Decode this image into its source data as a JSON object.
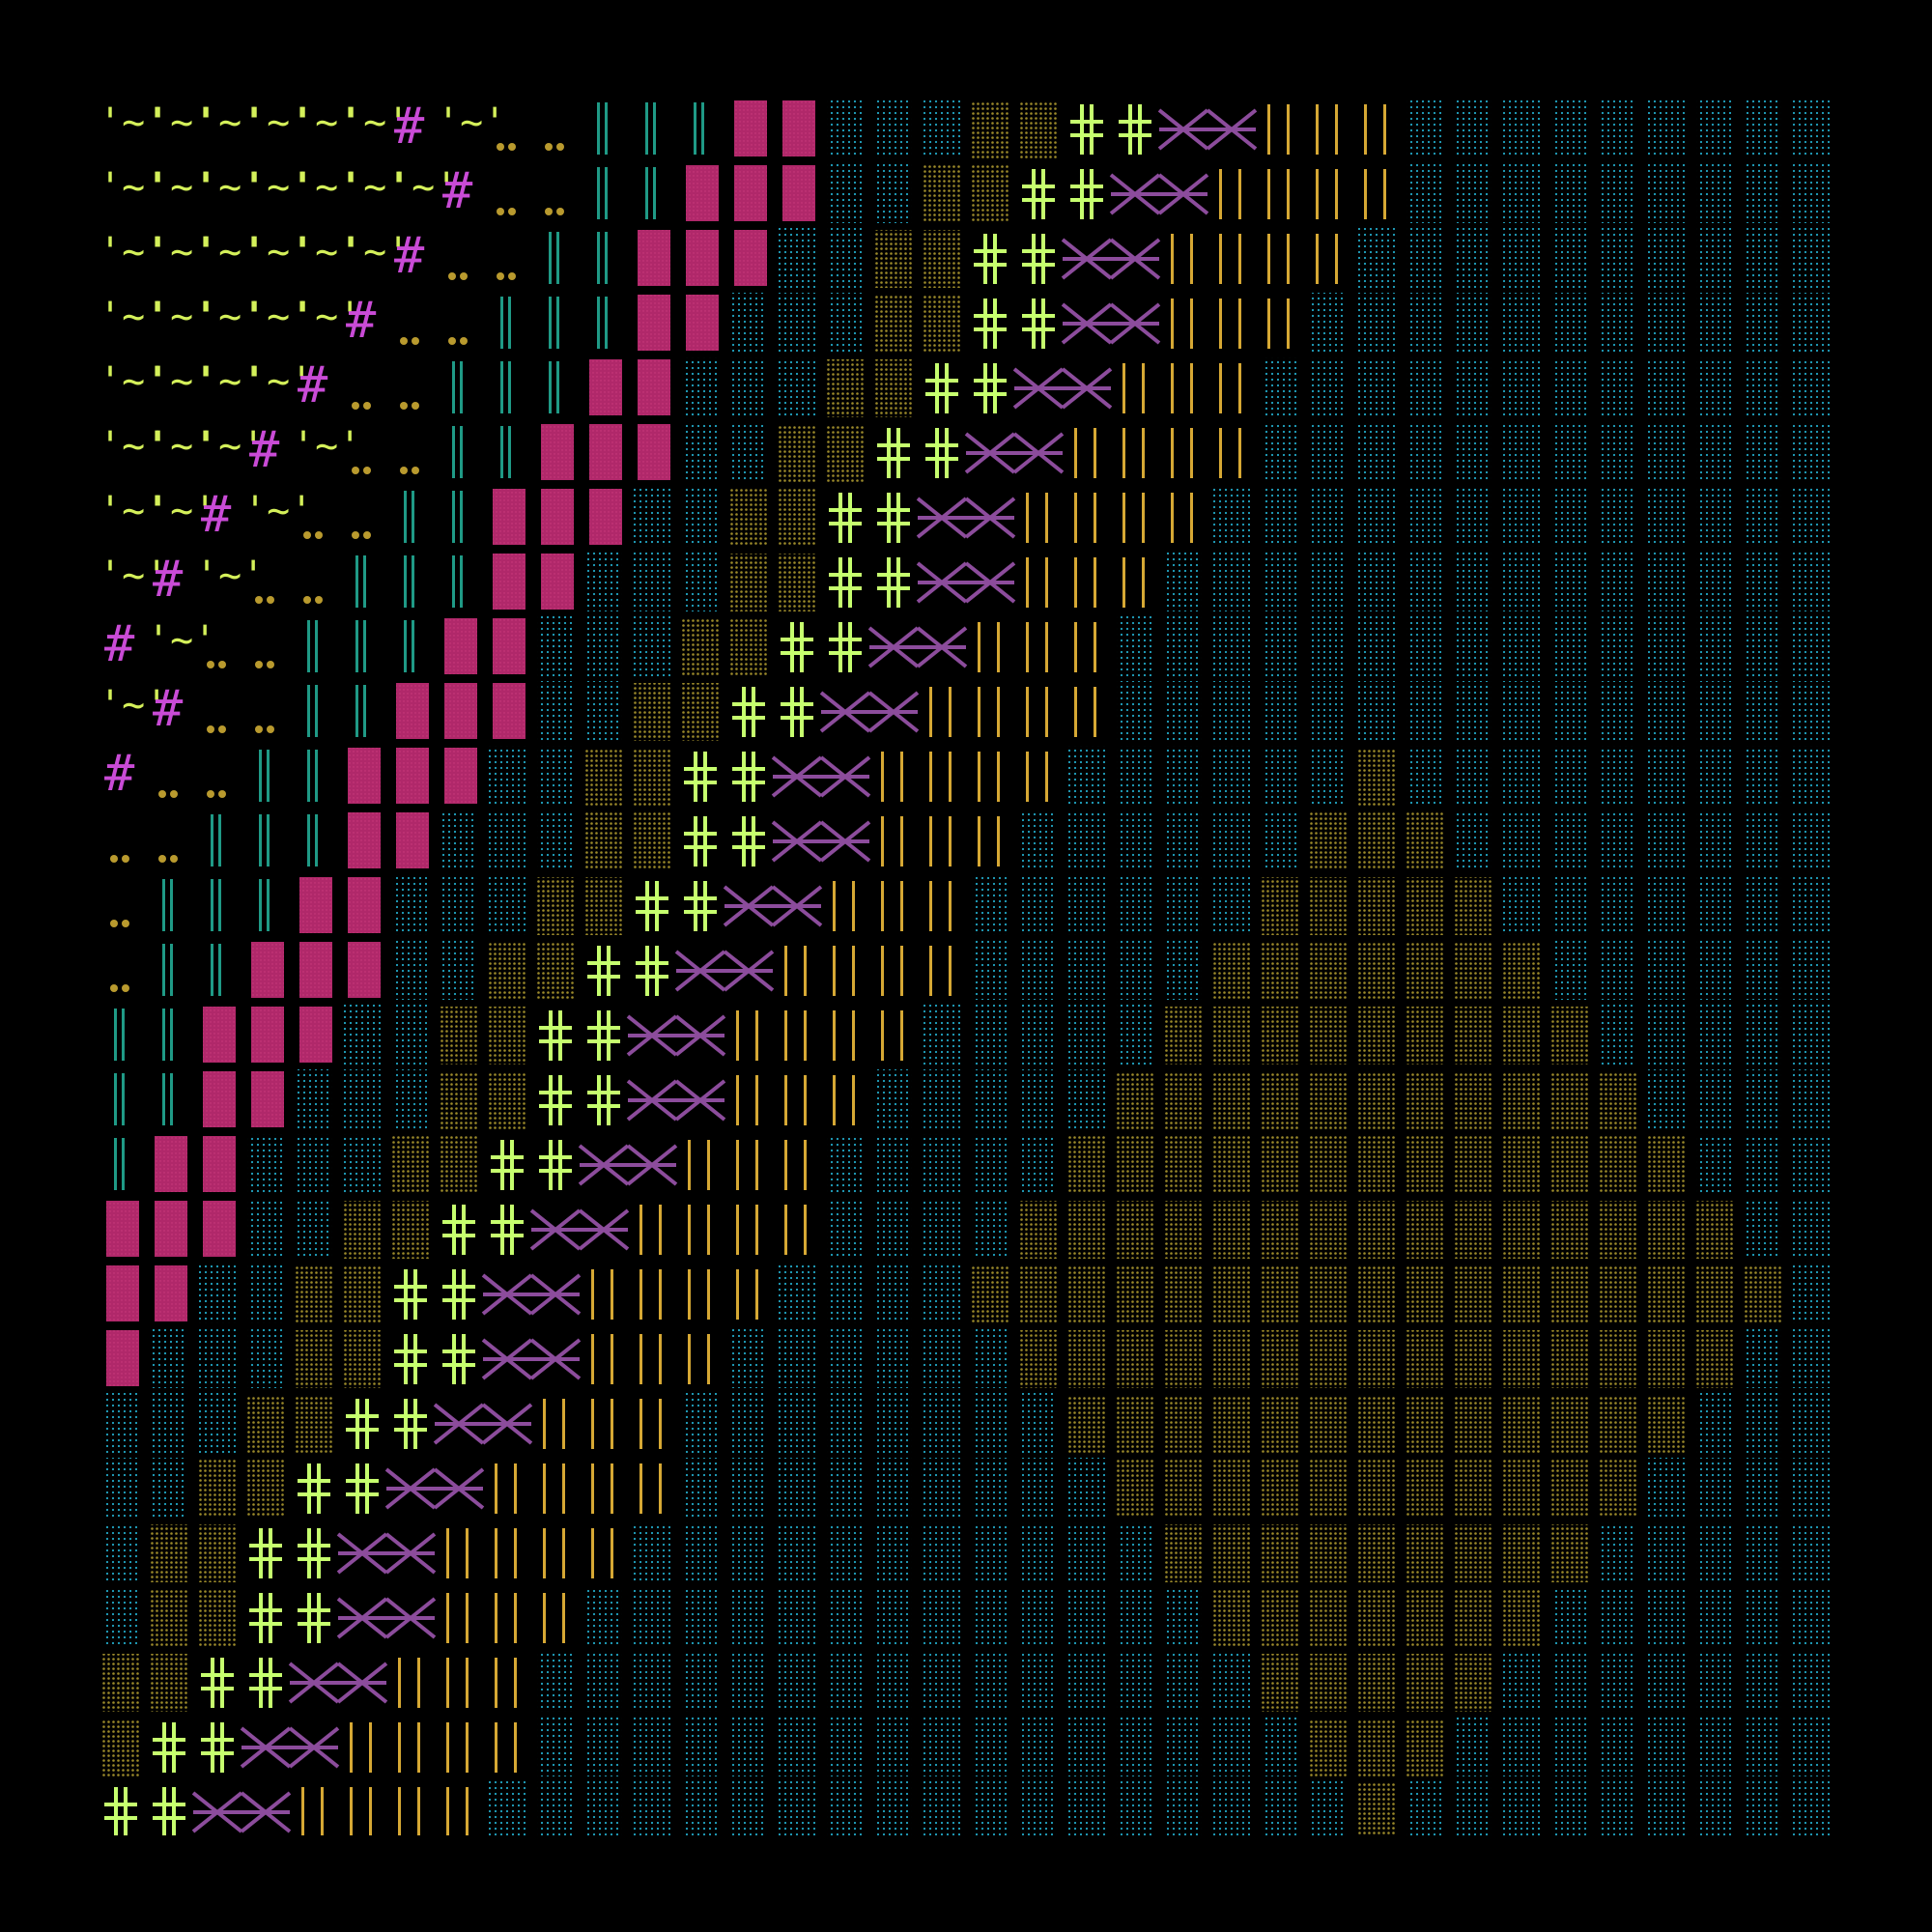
{
  "background": "#000000",
  "palette": {
    "hash": "#c94bd6",
    "wave": "#d4f05a",
    "dots": "#b99a2e",
    "bars": "#1f9a86",
    "block": "#b0286a",
    "cyan_dots": "#21a6c4",
    "olive_dots": "#9c8a2a",
    "cross": "#c6ff6e",
    "xlink": "#8c4c9c",
    "gold_bars": "#d6a834"
  },
  "glyph_legend": [
    {
      "symbol": "#",
      "icon": "hash-glyph"
    },
    {
      "symbol": "'~'",
      "icon": "wave-glyph"
    },
    {
      "symbol": "..",
      "icon": "double-dot-glyph"
    },
    {
      "symbol": "||",
      "icon": "double-bar-glyph"
    },
    {
      "symbol": "block",
      "icon": "dotted-block-glyph"
    },
    {
      "symbol": "cross",
      "icon": "double-cross-glyph"
    },
    {
      "symbol": "xlink",
      "icon": "x-chain-glyph"
    },
    {
      "symbol": "gold",
      "icon": "gold-bar-glyph"
    }
  ]
}
